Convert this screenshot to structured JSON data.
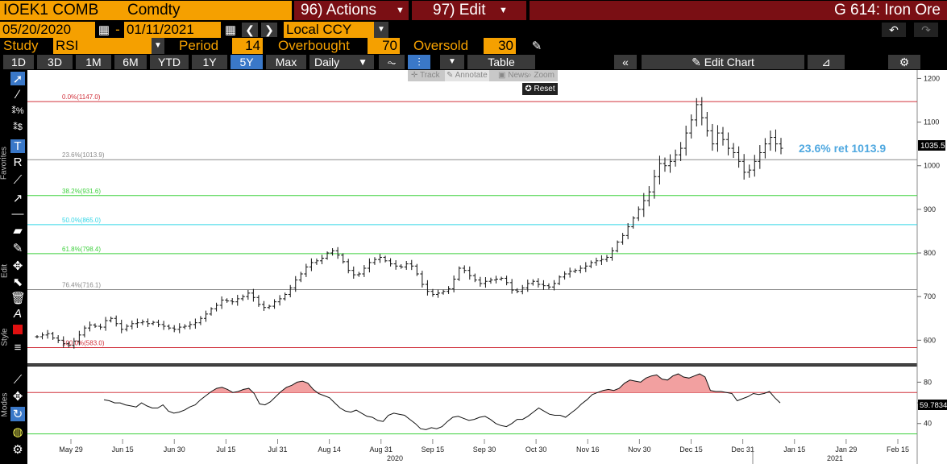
{
  "header": {
    "ticker": "IOEK1 COMB",
    "asset_class": "Comdty",
    "actions_label": "96) Actions",
    "edit_label": "97) Edit",
    "title": "G 614: Iron Ore"
  },
  "daterow": {
    "start_date": "05/20/2020",
    "dash": "-",
    "end_date": "01/11/2021",
    "currency": "Local CCY"
  },
  "studyrow": {
    "study_label": "Study",
    "study_value": "RSI",
    "period_label": "Period",
    "period_value": "14",
    "overbought_label": "Overbought",
    "overbought_value": "70",
    "oversold_label": "Oversold",
    "oversold_value": "30"
  },
  "toolbar": {
    "ranges": [
      "1D",
      "3D",
      "1M",
      "6M",
      "YTD",
      "1Y",
      "5Y",
      "Max"
    ],
    "active_range": "5Y",
    "interval": "Daily",
    "table_label": "Table",
    "edit_chart_label": "Edit Chart"
  },
  "tools": {
    "track": "Track",
    "annotate": "Annotate",
    "news": "News",
    "zoom": "Zoom",
    "reset": "Reset"
  },
  "sidebar": {
    "favorites_label": "Favorites",
    "edit_label": "Edit",
    "style_label": "Style",
    "modes_label": "Modes"
  },
  "colors": {
    "orange": "#f5a000",
    "header_red": "#7a0f14",
    "fib_red": "#d0303a",
    "fib_green": "#3fd13f",
    "fib_cyan": "#34d6e6",
    "annotation_blue": "#4fa8e0",
    "rsi_fill": "#f2a0a0"
  },
  "chart_data": [
    {
      "type": "ohlc",
      "x_ticks": [
        "May 29",
        "Jun 15",
        "Jun 30",
        "Jul 15",
        "Jul 31",
        "Aug 14",
        "Aug 31",
        "Sep 15",
        "Sep 30",
        "Oct 30",
        "Nov 16",
        "Nov 30",
        "Dec 15",
        "Dec 31",
        "Jan 15",
        "Jan 29",
        "Feb 15"
      ],
      "year_labels": [
        "2020",
        "2021"
      ],
      "y_ticks": [
        600,
        700,
        800,
        900,
        1000,
        1100,
        1200
      ],
      "ylim": [
        560,
        1210
      ],
      "last_price": "1035.5",
      "fib_levels": [
        {
          "label": "0.0%(1147.0)",
          "value": 1147.0,
          "color": "#d0303a"
        },
        {
          "label": "23.6%(1013.9)",
          "value": 1013.9,
          "color": "#8a8a8a"
        },
        {
          "label": "38.2%(931.6)",
          "value": 931.6,
          "color": "#3fd13f"
        },
        {
          "label": "50.0%(865.0)",
          "value": 865.0,
          "color": "#34d6e6"
        },
        {
          "label": "61.8%(798.4)",
          "value": 798.4,
          "color": "#3fd13f"
        },
        {
          "label": "76.4%(716.1)",
          "value": 716.1,
          "color": "#8a8a8a"
        },
        {
          "label": "100.0%(583.0)",
          "value": 583.0,
          "color": "#d0303a"
        }
      ],
      "annotation": "23.6% ret 1013.9",
      "prices": [
        608,
        612,
        615,
        605,
        600,
        592,
        588,
        598,
        612,
        628,
        635,
        632,
        630,
        645,
        650,
        638,
        625,
        632,
        638,
        640,
        642,
        638,
        641,
        636,
        632,
        628,
        625,
        630,
        632,
        636,
        640,
        650,
        660,
        672,
        680,
        692,
        690,
        688,
        695,
        700,
        708,
        698,
        682,
        675,
        678,
        688,
        695,
        705,
        720,
        738,
        752,
        768,
        778,
        782,
        788,
        800,
        805,
        795,
        780,
        760,
        750,
        752,
        765,
        778,
        785,
        790,
        782,
        775,
        770,
        768,
        775,
        770,
        752,
        728,
        712,
        705,
        708,
        712,
        718,
        740,
        765,
        760,
        748,
        738,
        730,
        735,
        738,
        740,
        742,
        732,
        715,
        712,
        720,
        730,
        735,
        728,
        725,
        722,
        730,
        745,
        752,
        758,
        760,
        765,
        770,
        778,
        782,
        785,
        790,
        805,
        825,
        840,
        860,
        880,
        900,
        920,
        940,
        975,
        1005,
        1000,
        1010,
        1025,
        1040,
        1075,
        1105,
        1140,
        1110,
        1080,
        1050,
        1075,
        1060,
        1040,
        1030,
        1010,
        985,
        990,
        1010,
        1030,
        1050,
        1065,
        1050,
        1040
      ]
    },
    {
      "type": "line",
      "name": "RSI",
      "y_ticks": [
        40,
        60,
        80
      ],
      "ylim": [
        25,
        92
      ],
      "overbought": 70,
      "oversold": 30,
      "last_value": "59.7834",
      "values": [
        63,
        62,
        60,
        60,
        58,
        57,
        56,
        60,
        57,
        55,
        55,
        58,
        52,
        50,
        51,
        53,
        56,
        58,
        63,
        67,
        71,
        74,
        75,
        73,
        70,
        71,
        73,
        74,
        69,
        59,
        58,
        61,
        66,
        71,
        75,
        77,
        80,
        81,
        79,
        73,
        69,
        67,
        65,
        60,
        55,
        52,
        51,
        53,
        50,
        47,
        46,
        43,
        42,
        48,
        50,
        49,
        48,
        44,
        40,
        35,
        34,
        36,
        35,
        37,
        42,
        46,
        47,
        45,
        43,
        44,
        46,
        47,
        44,
        40,
        38,
        37,
        40,
        44,
        44,
        47,
        51,
        55,
        52,
        49,
        48,
        48,
        46,
        50,
        54,
        59,
        63,
        68,
        70,
        72,
        73,
        72,
        74,
        79,
        82,
        81,
        80,
        84,
        86,
        87,
        83,
        82,
        86,
        88,
        85,
        84,
        86,
        88,
        85,
        72,
        71,
        71,
        70,
        69,
        62,
        64,
        66,
        69,
        68,
        69,
        71,
        65,
        60
      ]
    }
  ]
}
